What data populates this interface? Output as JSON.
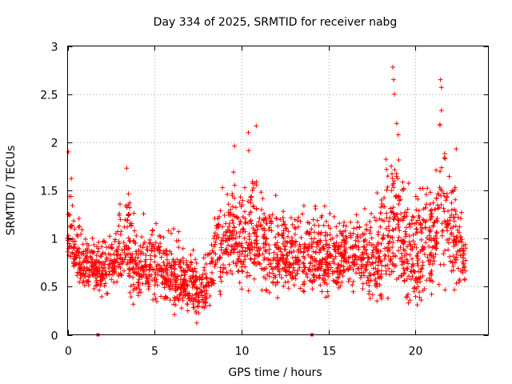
{
  "chart_data": {
    "type": "scatter",
    "title": "Day 334 of 2025, SRMTID for receiver nabg",
    "xlabel": "GPS time / hours",
    "ylabel": "SRMTID / TECUs",
    "xlim": [
      0,
      24.2
    ],
    "ylim": [
      0,
      3
    ],
    "x_ticks": [
      0,
      5,
      10,
      15,
      20
    ],
    "y_ticks": [
      0,
      0.5,
      1,
      1.5,
      2,
      2.5,
      3
    ],
    "x_tick_labels": [
      "0",
      "5",
      "10",
      "15",
      "20"
    ],
    "y_tick_labels": [
      "0",
      "0.5",
      "1",
      "1.5",
      "2",
      "2.5",
      "3"
    ],
    "grid": true,
    "marker": "plus",
    "color": "#ff0000",
    "zero_markers_x": [
      1.75,
      14.05
    ],
    "series": [
      {
        "name": "nabg",
        "envelope_hours": [
          0,
          0.5,
          1,
          1.5,
          2,
          2.5,
          3,
          3.5,
          4,
          4.5,
          5,
          5.5,
          6,
          6.5,
          7,
          7.5,
          8,
          8.5,
          9,
          9.5,
          10,
          10.5,
          11,
          11.5,
          12,
          12.5,
          13,
          13.5,
          14,
          14.5,
          15,
          15.5,
          16,
          16.5,
          17,
          17.5,
          18,
          18.5,
          19,
          19.5,
          20,
          20.5,
          21,
          21.5,
          22,
          22.5,
          22.9
        ],
        "envelope_low": [
          0.45,
          0.4,
          0.4,
          0.45,
          0.3,
          0.3,
          0.35,
          0.3,
          0.25,
          0.3,
          0.25,
          0.2,
          0.1,
          0.15,
          0.15,
          0.05,
          0.1,
          0.3,
          0.35,
          0.4,
          0.35,
          0.3,
          0.3,
          0.35,
          0.35,
          0.35,
          0.35,
          0.3,
          0.3,
          0.3,
          0.35,
          0.35,
          0.4,
          0.35,
          0.35,
          0.2,
          0.15,
          0.15,
          0.1,
          0.15,
          0.15,
          0.25,
          0.3,
          0.35,
          0.35,
          0.35,
          0.4
        ],
        "envelope_high": [
          1.9,
          1.4,
          1.1,
          1.1,
          1.1,
          1.3,
          1.5,
          1.75,
          1.2,
          1.45,
          1.3,
          1.35,
          1.25,
          1.2,
          1.0,
          0.95,
          1.0,
          1.6,
          1.6,
          2.1,
          1.6,
          2.17,
          1.8,
          1.5,
          1.6,
          1.45,
          1.4,
          1.55,
          1.5,
          1.4,
          1.4,
          1.25,
          1.4,
          1.45,
          1.4,
          1.45,
          1.9,
          2.1,
          2.78,
          1.8,
          1.8,
          1.85,
          1.7,
          2.65,
          1.95,
          1.7,
          1.05
        ],
        "peaks": [
          [
            0.05,
            1.9
          ],
          [
            3.4,
            1.73
          ],
          [
            10.85,
            2.17
          ],
          [
            9.6,
            1.96
          ],
          [
            10.4,
            2.1
          ],
          [
            18.7,
            2.78
          ],
          [
            18.75,
            2.65
          ],
          [
            18.8,
            2.5
          ],
          [
            21.45,
            2.65
          ],
          [
            21.5,
            2.57
          ],
          [
            21.5,
            2.33
          ],
          [
            22.35,
            1.93
          ]
        ]
      }
    ]
  }
}
